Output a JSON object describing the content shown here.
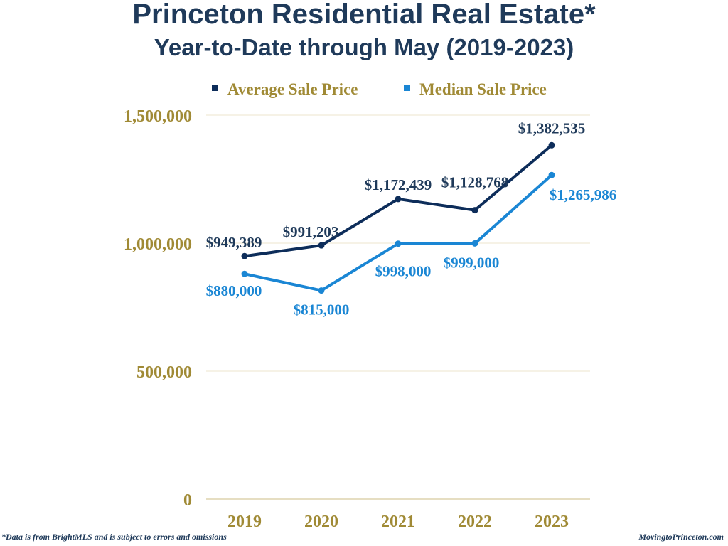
{
  "header": {
    "title": "Princeton Residential Real Estate*",
    "subtitle": "Year-to-Date through May (2019-2023)"
  },
  "footer": {
    "note": "*Data is from BrightMLS and is subject to errors and omissions",
    "source": "MovingtoPrinceton.com"
  },
  "colors": {
    "title": "#1f3a5a",
    "axis_text": "#a08a35",
    "gridline": "#ece4cc",
    "average": "#0d2d5a",
    "median": "#1a86d4"
  },
  "chart_data": {
    "type": "line",
    "title": "Princeton Residential Real Estate* Year-to-Date through May (2019-2023)",
    "xlabel": "",
    "ylabel": "",
    "categories": [
      "2019",
      "2020",
      "2021",
      "2022",
      "2023"
    ],
    "ylim": [
      0,
      1500000
    ],
    "yticks": [
      0,
      500000,
      1000000,
      1500000
    ],
    "ytick_labels": [
      "0",
      "500,000",
      "1,000,000",
      "1,500,000"
    ],
    "grid": true,
    "legend": "top",
    "series": [
      {
        "name": "Average Sale Price",
        "values": [
          949389,
          991203,
          1172439,
          1128768,
          1382535
        ],
        "labels": [
          "$949,389",
          "$991,203",
          "$1,172,439",
          "$1,128,768",
          "$1,382,535"
        ],
        "label_position": "above"
      },
      {
        "name": "Median Sale Price",
        "values": [
          880000,
          815000,
          998000,
          999000,
          1265986
        ],
        "labels": [
          "$880,000",
          "$815,000",
          "$998,000",
          "$999,000",
          "$1,265,986"
        ],
        "label_position": "below"
      }
    ]
  }
}
